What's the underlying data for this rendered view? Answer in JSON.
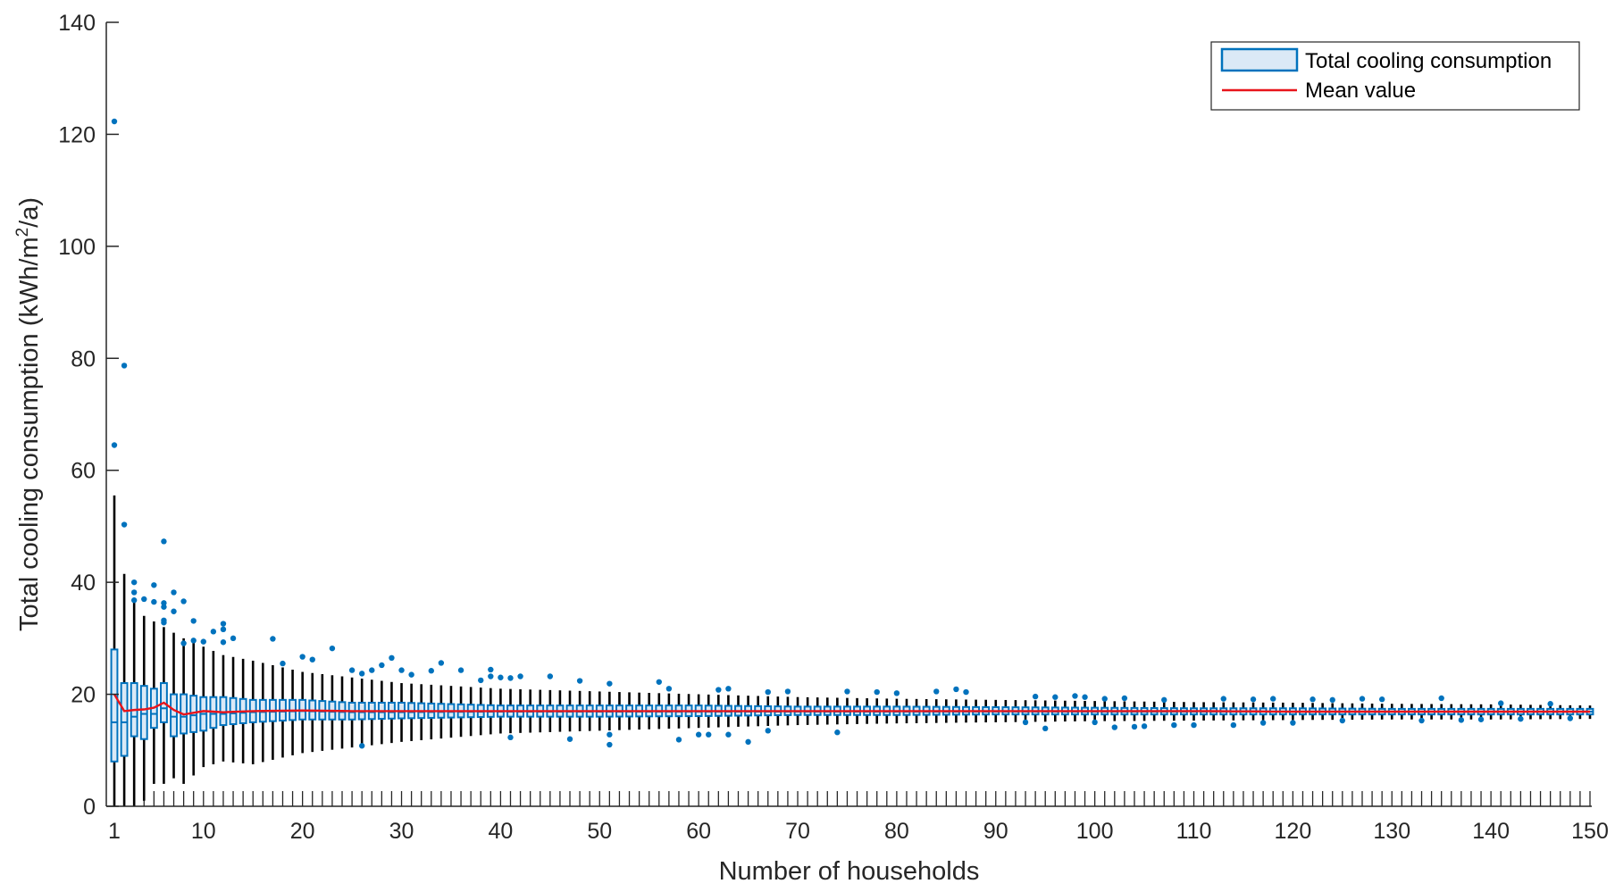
{
  "chart_data": {
    "type": "box",
    "xlabel": "Number of households",
    "ylabel_main": "Total cooling consumption (kWh/m",
    "ylabel_sup": "2",
    "ylabel_tail": "/a)",
    "xlim": [
      1,
      150
    ],
    "ylim": [
      0,
      140
    ],
    "xticks": [
      1,
      10,
      20,
      30,
      40,
      50,
      60,
      70,
      80,
      90,
      100,
      110,
      120,
      130,
      140,
      150
    ],
    "yticks": [
      0,
      20,
      40,
      60,
      80,
      100,
      120,
      140
    ],
    "grid": false,
    "legend": {
      "placement": "top-right",
      "entries": [
        {
          "label": "Total cooling consumption",
          "kind": "box"
        },
        {
          "label": "Mean value",
          "kind": "line"
        }
      ]
    },
    "box_color": "#0072BD",
    "box_fill": "#dbe9f6",
    "whisker_color": "#000000",
    "mean_color": "#e8141b",
    "num_boxes": 150,
    "anchors": {
      "n": [
        1,
        2,
        3,
        4,
        5,
        6,
        7,
        8,
        10,
        12,
        15,
        20,
        25,
        30,
        40,
        50,
        60,
        70,
        80,
        90,
        100,
        110,
        120,
        130,
        140,
        150
      ],
      "mean": [
        20.0,
        17.0,
        17.2,
        17.3,
        17.6,
        18.5,
        17.2,
        16.4,
        17.0,
        16.8,
        17.0,
        17.1,
        17.0,
        17.0,
        17.0,
        17.0,
        17.0,
        17.0,
        17.0,
        17.0,
        17.0,
        17.0,
        16.9,
        16.9,
        16.9,
        16.9
      ],
      "q1": [
        8.0,
        9.0,
        12.5,
        12.0,
        14.0,
        15.0,
        12.5,
        13.0,
        13.5,
        14.5,
        15.0,
        15.5,
        15.5,
        15.7,
        16.0,
        16.0,
        16.1,
        16.3,
        16.3,
        16.4,
        16.4,
        16.4,
        16.4,
        16.4,
        16.4,
        16.4
      ],
      "q3": [
        28.0,
        22.0,
        22.0,
        21.5,
        21.0,
        22.0,
        20.0,
        20.0,
        19.5,
        19.5,
        19.0,
        19.0,
        18.5,
        18.5,
        18.0,
        18.0,
        18.0,
        17.8,
        17.8,
        17.7,
        17.6,
        17.5,
        17.5,
        17.4,
        17.4,
        17.4
      ],
      "median": [
        15.0,
        15.0,
        16.0,
        16.5,
        16.5,
        17.5,
        16.0,
        16.0,
        16.5,
        16.5,
        16.8,
        17.0,
        16.8,
        16.8,
        16.9,
        16.9,
        16.9,
        16.9,
        16.9,
        16.9,
        16.9,
        16.9,
        16.9,
        16.9,
        16.9,
        16.9
      ],
      "wlo": [
        0.0,
        0.0,
        0.0,
        1.0,
        4.0,
        4.0,
        5.0,
        4.0,
        7.0,
        8.0,
        7.5,
        9.5,
        10.5,
        11.5,
        13.0,
        13.5,
        14.0,
        14.5,
        14.8,
        15.0,
        15.2,
        15.3,
        15.4,
        15.5,
        15.5,
        15.6
      ],
      "whi": [
        55.5,
        41.5,
        37.0,
        34.0,
        33.0,
        32.0,
        31.0,
        30.0,
        28.5,
        27.0,
        26.0,
        24.0,
        23.0,
        22.0,
        21.0,
        20.5,
        20.0,
        19.5,
        19.2,
        19.0,
        18.8,
        18.6,
        18.5,
        18.3,
        18.2,
        18.0
      ]
    },
    "outliers": [
      [
        1,
        122.3
      ],
      [
        1,
        64.5
      ],
      [
        2,
        78.7
      ],
      [
        2,
        50.3
      ],
      [
        3,
        40.0
      ],
      [
        3,
        38.2
      ],
      [
        3,
        36.8
      ],
      [
        4,
        37.0
      ],
      [
        5,
        39.5
      ],
      [
        5,
        36.5
      ],
      [
        6,
        47.3
      ],
      [
        6,
        36.3
      ],
      [
        6,
        35.6
      ],
      [
        6,
        33.2
      ],
      [
        6,
        32.8
      ],
      [
        7,
        38.2
      ],
      [
        7,
        34.8
      ],
      [
        8,
        36.6
      ],
      [
        8,
        29.1
      ],
      [
        9,
        33.1
      ],
      [
        9,
        29.6
      ],
      [
        10,
        29.4
      ],
      [
        11,
        31.2
      ],
      [
        12,
        32.6
      ],
      [
        12,
        31.6
      ],
      [
        12,
        29.3
      ],
      [
        13,
        30.0
      ],
      [
        17,
        29.9
      ],
      [
        18,
        25.5
      ],
      [
        20,
        26.7
      ],
      [
        21,
        26.2
      ],
      [
        23,
        28.2
      ],
      [
        25,
        24.3
      ],
      [
        26,
        23.7
      ],
      [
        26,
        10.8
      ],
      [
        27,
        24.3
      ],
      [
        28,
        25.2
      ],
      [
        29,
        26.5
      ],
      [
        30,
        24.3
      ],
      [
        31,
        23.5
      ],
      [
        33,
        24.2
      ],
      [
        34,
        25.6
      ],
      [
        36,
        24.3
      ],
      [
        38,
        22.5
      ],
      [
        39,
        23.2
      ],
      [
        39,
        24.4
      ],
      [
        40,
        23.0
      ],
      [
        41,
        22.9
      ],
      [
        41,
        12.3
      ],
      [
        42,
        23.2
      ],
      [
        45,
        23.2
      ],
      [
        47,
        12.0
      ],
      [
        48,
        22.4
      ],
      [
        51,
        21.9
      ],
      [
        51,
        12.8
      ],
      [
        51,
        11.0
      ],
      [
        56,
        22.2
      ],
      [
        57,
        21.0
      ],
      [
        58,
        11.9
      ],
      [
        60,
        12.8
      ],
      [
        61,
        12.8
      ],
      [
        62,
        20.8
      ],
      [
        63,
        21.0
      ],
      [
        63,
        12.8
      ],
      [
        65,
        11.5
      ],
      [
        67,
        20.4
      ],
      [
        67,
        13.5
      ],
      [
        69,
        20.5
      ],
      [
        74,
        13.2
      ],
      [
        75,
        20.5
      ],
      [
        78,
        20.4
      ],
      [
        80,
        20.2
      ],
      [
        84,
        20.5
      ],
      [
        86,
        20.9
      ],
      [
        87,
        20.4
      ],
      [
        93,
        15.0
      ],
      [
        94,
        19.6
      ],
      [
        95,
        13.9
      ],
      [
        96,
        19.5
      ],
      [
        98,
        19.7
      ],
      [
        99,
        19.5
      ],
      [
        100,
        15.0
      ],
      [
        101,
        19.2
      ],
      [
        102,
        14.1
      ],
      [
        103,
        19.3
      ],
      [
        104,
        14.2
      ],
      [
        105,
        14.3
      ],
      [
        107,
        19.0
      ],
      [
        108,
        14.5
      ],
      [
        110,
        14.5
      ],
      [
        113,
        19.2
      ],
      [
        114,
        14.5
      ],
      [
        116,
        19.1
      ],
      [
        117,
        14.9
      ],
      [
        118,
        19.2
      ],
      [
        120,
        14.9
      ],
      [
        122,
        19.1
      ],
      [
        124,
        19.0
      ],
      [
        125,
        15.3
      ],
      [
        127,
        19.2
      ],
      [
        129,
        19.1
      ],
      [
        133,
        15.3
      ],
      [
        135,
        19.3
      ],
      [
        137,
        15.4
      ],
      [
        139,
        15.5
      ],
      [
        141,
        18.4
      ],
      [
        143,
        15.6
      ],
      [
        146,
        18.3
      ],
      [
        148,
        15.7
      ]
    ]
  }
}
